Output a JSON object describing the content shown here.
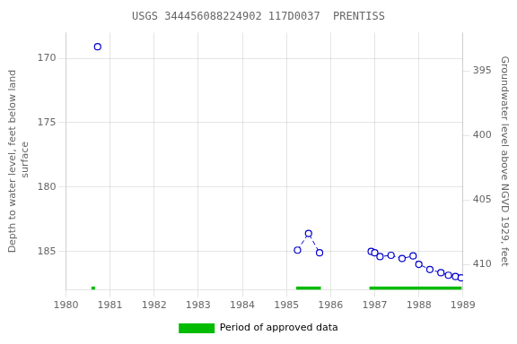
{
  "chart_data": {
    "type": "line",
    "title": "USGS 344456088224902 117D0037  PRENTISS",
    "y_label": "Depth to water level, feet below land\n surface",
    "y2_label": "Groundwater level above NGVD 1929, feet",
    "xlim": [
      1980,
      1989
    ],
    "xticks": [
      1980,
      1981,
      1982,
      1983,
      1984,
      1985,
      1986,
      1987,
      1988,
      1989
    ],
    "ylim": [
      188,
      168
    ],
    "yticks": [
      170,
      175,
      180,
      185
    ],
    "y2lim": [
      412,
      392
    ],
    "y2ticks": [
      410,
      405,
      400,
      395
    ],
    "grid": true,
    "legend": "bottom",
    "series": [
      {
        "color": "#0000cc",
        "marker": "o",
        "line_style": "dashed",
        "segments": [
          {
            "x": [
              1980.72
            ],
            "values": [
              169.1
            ]
          },
          {
            "x": [
              1985.25,
              1985.5,
              1985.75
            ],
            "values": [
              184.9,
              183.6,
              185.1
            ]
          },
          {
            "x": [
              1986.92,
              1987.0,
              1987.12,
              1987.37,
              1987.62,
              1987.87,
              1988.0,
              1988.25,
              1988.5,
              1988.67,
              1988.83,
              1988.96
            ],
            "values": [
              185.0,
              185.1,
              185.4,
              185.3,
              185.55,
              185.35,
              186.0,
              186.4,
              186.65,
              186.85,
              186.95,
              187.05
            ]
          }
        ]
      },
      {
        "name": "Period of approved data",
        "type": "bar",
        "color": "#00bb00",
        "y": 187.85,
        "height": 0.25,
        "periods": [
          [
            1980.58,
            1980.66
          ],
          [
            1985.22,
            1985.78
          ],
          [
            1986.88,
            1988.97
          ]
        ]
      }
    ]
  }
}
